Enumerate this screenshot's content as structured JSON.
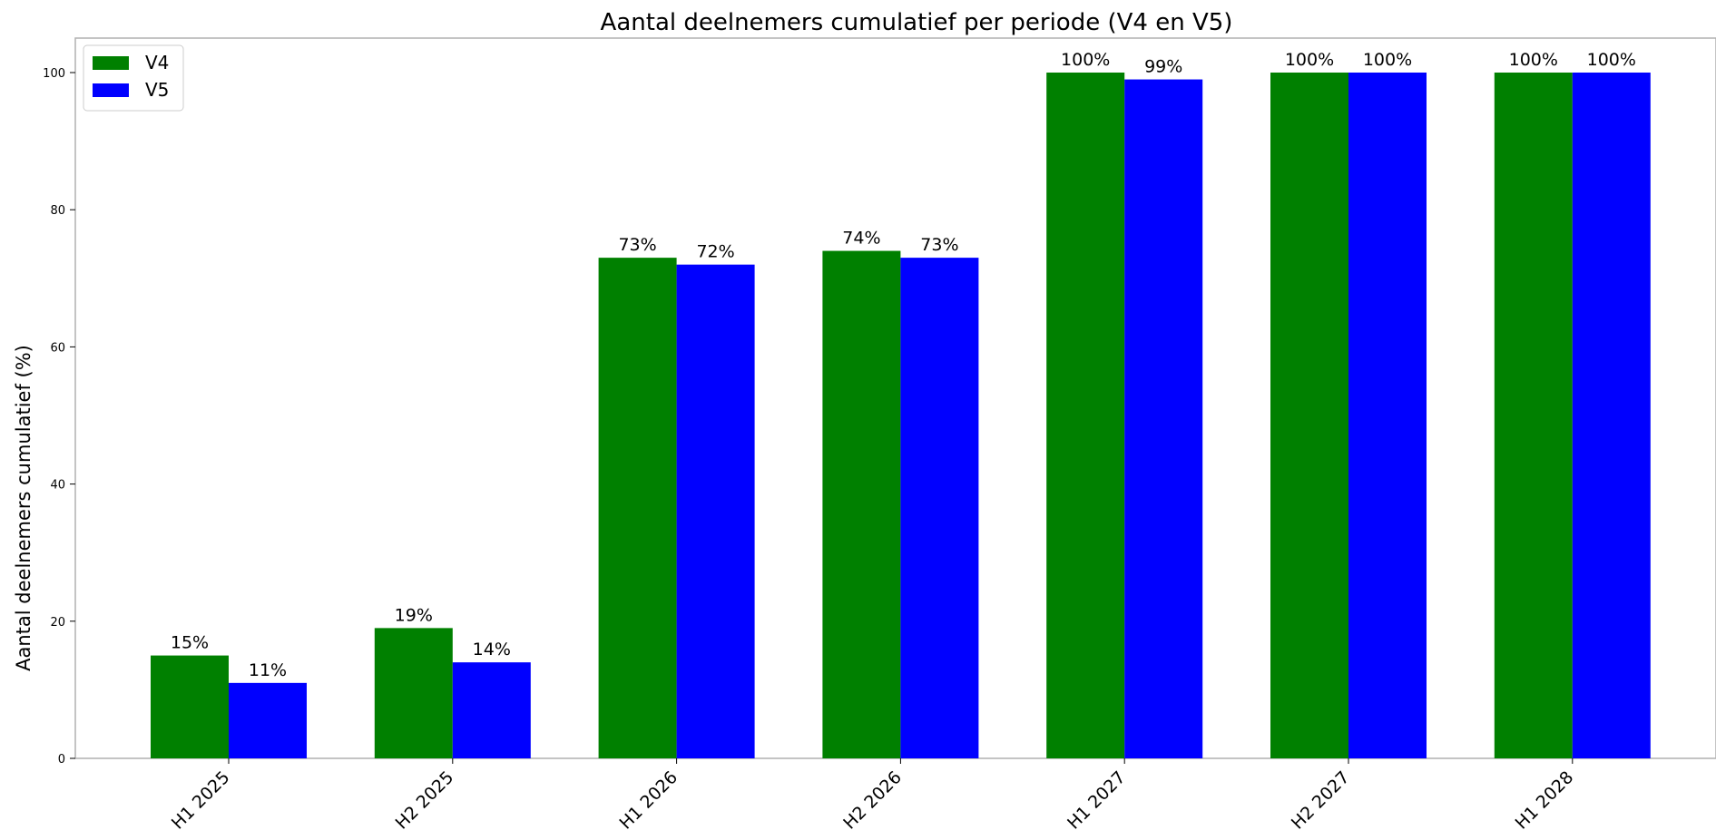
{
  "chart_data": {
    "type": "bar",
    "title": "Aantal deelnemers cumulatief per periode (V4 en V5)",
    "xlabel": "",
    "ylabel": "Aantal deelnemers cumulatief (%)",
    "categories": [
      "H1 2025",
      "H2 2025",
      "H1 2026",
      "H2 2026",
      "H1 2027",
      "H2 2027",
      "H1 2028"
    ],
    "series": [
      {
        "name": "V4",
        "color": "#008000",
        "values": [
          15,
          19,
          73,
          74,
          100,
          100,
          100
        ],
        "labels": [
          "15%",
          "19%",
          "73%",
          "74%",
          "100%",
          "100%",
          "100%"
        ]
      },
      {
        "name": "V5",
        "color": "#0000ff",
        "values": [
          11,
          14,
          72,
          73,
          99,
          100,
          100
        ],
        "labels": [
          "11%",
          "14%",
          "72%",
          "73%",
          "99%",
          "100%",
          "100%"
        ]
      }
    ],
    "ylim": [
      0,
      105
    ],
    "yticks": [
      0,
      20,
      40,
      60,
      80,
      100
    ],
    "ytick_labels": [
      "0",
      "20",
      "40",
      "60",
      "80",
      "100"
    ],
    "grid": false,
    "legend_position": "top-left"
  }
}
